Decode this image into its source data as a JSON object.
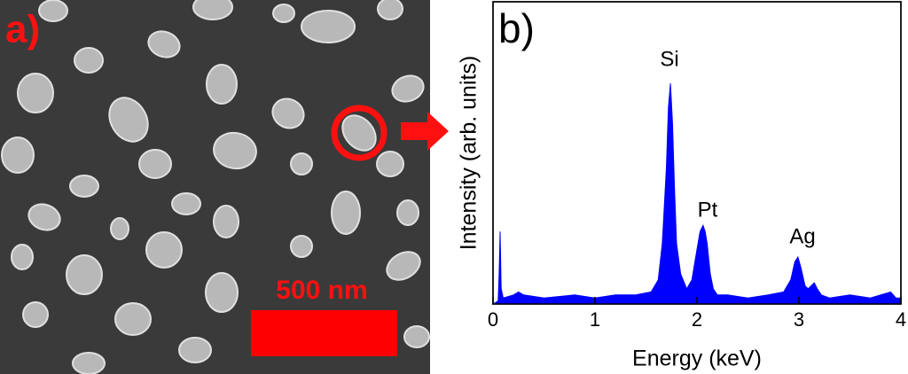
{
  "panel_a": {
    "label": "a)",
    "scale_bar": "500 nm"
  },
  "chart_data": {
    "type": "area",
    "panel_label": "b)",
    "x_label": "Energy (keV)",
    "y_label": "Intensity (arb. units)",
    "annotations": [
      "Si",
      "Pt",
      "Ag"
    ],
    "color": "#0000ff",
    "x": [
      0,
      0.05,
      0.06,
      0.07,
      0.08,
      0.1,
      0.2,
      0.25,
      0.3,
      0.5,
      0.8,
      1.0,
      1.2,
      1.4,
      1.55,
      1.62,
      1.66,
      1.7,
      1.72,
      1.74,
      1.76,
      1.78,
      1.8,
      1.84,
      1.9,
      1.95,
      2.0,
      2.03,
      2.06,
      2.08,
      2.1,
      2.13,
      2.16,
      2.2,
      2.3,
      2.5,
      2.7,
      2.85,
      2.92,
      2.96,
      2.99,
      3.02,
      3.06,
      3.09,
      3.12,
      3.15,
      3.18,
      3.22,
      3.3,
      3.5,
      3.7,
      3.9,
      3.95,
      4.0
    ],
    "values": [
      0,
      1,
      10,
      24,
      5,
      2,
      3,
      4,
      3,
      2,
      3,
      2,
      3,
      3,
      4,
      8,
      20,
      45,
      65,
      73,
      60,
      38,
      20,
      10,
      5,
      8,
      18,
      24,
      26,
      24,
      20,
      10,
      5,
      3,
      3,
      2,
      3,
      4,
      8,
      14,
      15.5,
      12,
      6,
      5,
      6,
      7,
      5,
      3,
      2,
      3,
      2,
      4,
      2,
      2
    ],
    "xlim": [
      0,
      4
    ],
    "xticks": [
      0,
      1,
      2,
      3,
      4
    ],
    "ylim": [
      0,
      100
    ]
  }
}
